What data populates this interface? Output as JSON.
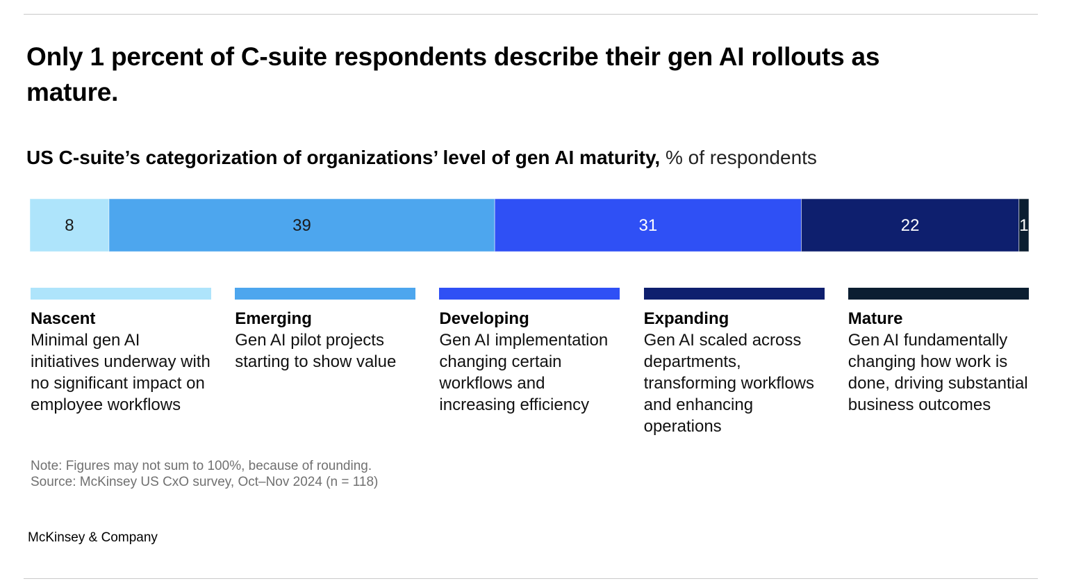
{
  "title": "Only 1 percent of C-suite respondents describe their gen AI rollouts as mature.",
  "subtitle": {
    "main": "US C-suite’s categorization of organizations’ level of gen AI maturity,",
    "unit": " % of respondents"
  },
  "chart_data": {
    "type": "bar",
    "orientation": "horizontal-stacked",
    "categories": [
      "Nascent",
      "Emerging",
      "Developing",
      "Expanding",
      "Mature"
    ],
    "values": [
      8,
      39,
      31,
      22,
      1
    ],
    "value_labels": [
      "8",
      "39",
      "31",
      "22",
      "1"
    ],
    "colors": [
      "#aee4fb",
      "#4da6ee",
      "#2f50f5",
      "#0e1f6e",
      "#0b1e31"
    ],
    "label_colors": [
      "#1a1a1a",
      "#1a1a1a",
      "#ffffff",
      "#ffffff",
      "#ffffff"
    ],
    "xlim": [
      0,
      101
    ],
    "legend_placement": "below",
    "descriptions": [
      "Minimal gen AI initiatives underway with no significant impact on employee workflows",
      "Gen AI pilot projects starting to show value",
      "Gen AI implementation changing certain workflows and increasing efficiency",
      "Gen AI scaled across departments, transforming workflows and enhancing operations",
      "Gen AI fundamentally changing how work is done, driving substantial business outcomes"
    ]
  },
  "footnote": {
    "note": "Note: Figures may not sum to 100%, because of rounding.",
    "source": "Source: McKinsey US CxO survey, Oct–Nov 2024 (n = 118)"
  },
  "brand": "McKinsey & Company"
}
